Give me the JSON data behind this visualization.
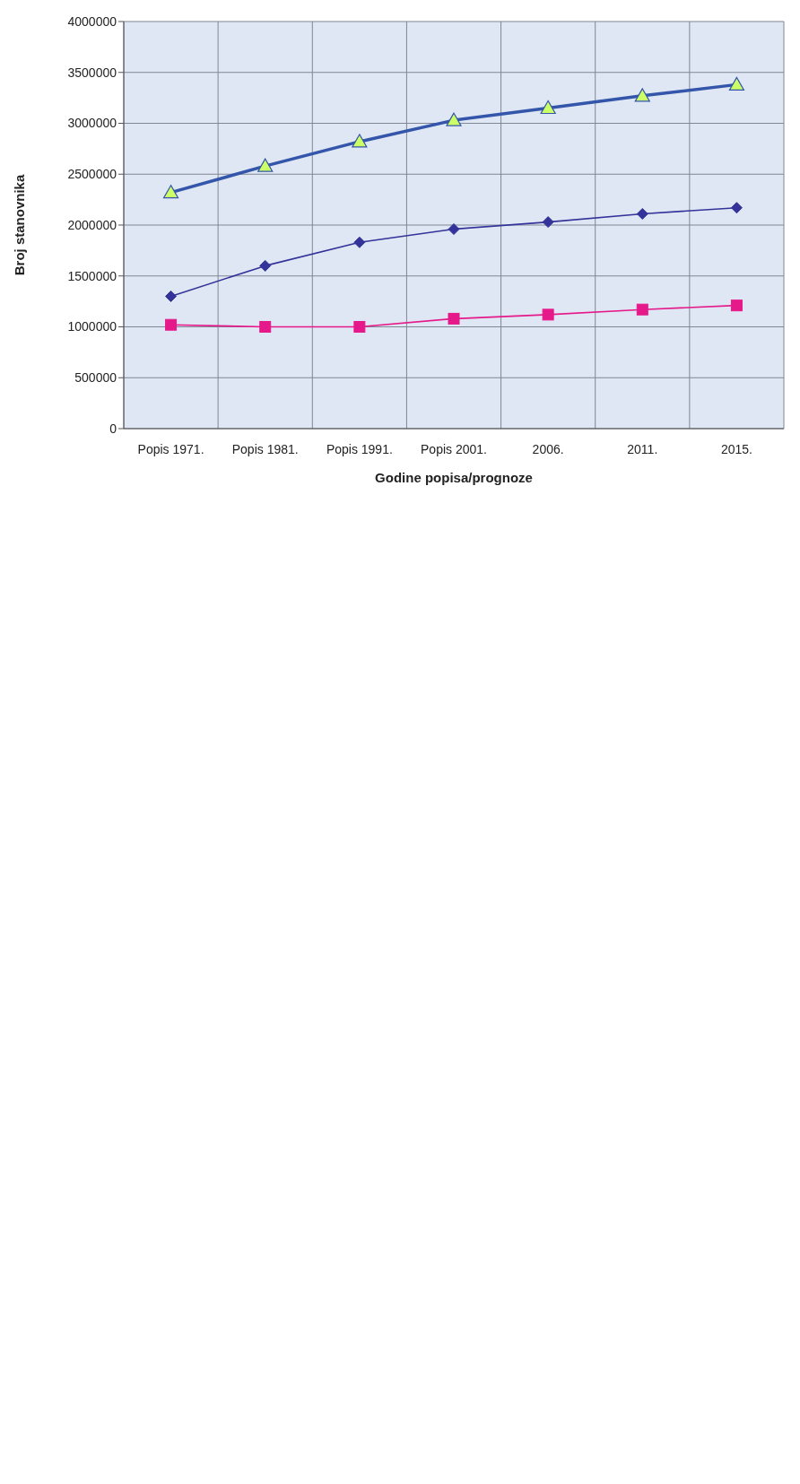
{
  "chart_data": {
    "type": "line",
    "xlabel": "Godine popisa/prognoze",
    "ylabel": "Broj stanovnika",
    "categories": [
      "Popis 1971.",
      "Popis 1981.",
      "Popis 1991.",
      "Popis 2001.",
      "2006.",
      "2011.",
      "2015."
    ],
    "series": [
      {
        "color": "#3355aa",
        "marker": "triangle",
        "values": [
          2320000,
          2580000,
          2820000,
          3030000,
          3150000,
          3270000,
          3380000
        ]
      },
      {
        "color": "#333399",
        "marker": "diamond",
        "values": [
          1300000,
          1600000,
          1830000,
          1960000,
          2030000,
          2110000,
          2170000
        ]
      },
      {
        "color": "#e6198a",
        "marker": "square",
        "values": [
          1020000,
          1000000,
          1000000,
          1080000,
          1120000,
          1170000,
          1210000
        ]
      }
    ],
    "ylim": [
      0,
      4000000
    ],
    "yticks": [
      0,
      500000,
      1000000,
      1500000,
      2000000,
      2500000,
      3000000,
      3500000,
      4000000
    ],
    "grid": true,
    "legend": false
  }
}
